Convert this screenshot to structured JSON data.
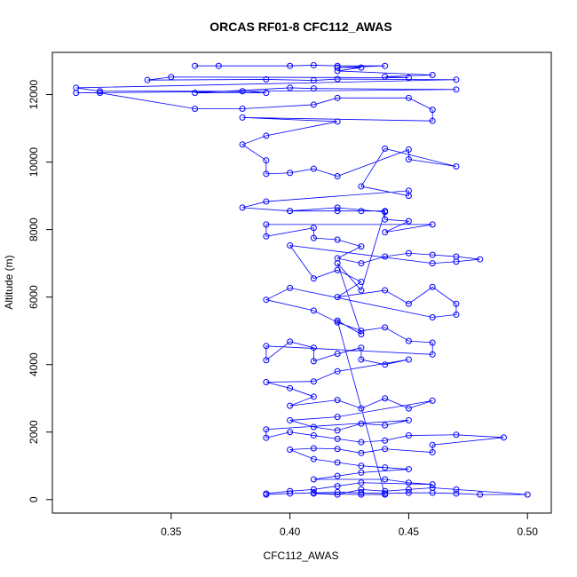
{
  "chart_data": {
    "type": "line",
    "title": "ORCAS RF01-8 CFC112_AWAS",
    "xlabel": "CFC112_AWAS",
    "ylabel": "Altitude (m)",
    "xlim": [
      0.3,
      0.51
    ],
    "ylim": [
      -400,
      13250
    ],
    "x_ticks": [
      0.35,
      0.4,
      0.45,
      0.5
    ],
    "x_tick_labels": [
      "0.35",
      "0.40",
      "0.45",
      "0.50"
    ],
    "y_ticks": [
      0,
      2000,
      4000,
      6000,
      8000,
      10000,
      12000
    ],
    "y_tick_labels": [
      "0",
      "2000",
      "4000",
      "6000",
      "8000",
      "10000",
      "12000"
    ],
    "marker": "open-circle",
    "grid": false,
    "legend": "none",
    "colors": {
      "series": "#0000ff",
      "axes": "#000000",
      "background": "#ffffff"
    },
    "series": [
      {
        "points": [
          [
            0.36,
            12850
          ],
          [
            0.37,
            12850
          ],
          [
            0.4,
            12850
          ],
          [
            0.41,
            12870
          ],
          [
            0.42,
            12850
          ],
          [
            0.44,
            12850
          ],
          [
            0.42,
            12800
          ],
          [
            0.43,
            12800
          ],
          [
            0.42,
            12700
          ],
          [
            0.46,
            12580
          ],
          [
            0.44,
            12530
          ],
          [
            0.45,
            12500
          ],
          [
            0.35,
            12520
          ],
          [
            0.34,
            12430
          ],
          [
            0.39,
            12450
          ],
          [
            0.41,
            12420
          ],
          [
            0.42,
            12460
          ],
          [
            0.47,
            12440
          ],
          [
            0.31,
            12200
          ],
          [
            0.32,
            12100
          ],
          [
            0.38,
            12100
          ],
          [
            0.39,
            12050
          ],
          [
            0.36,
            12050
          ],
          [
            0.4,
            12200
          ],
          [
            0.41,
            12180
          ],
          [
            0.47,
            12150
          ],
          [
            0.31,
            12050
          ],
          [
            0.32,
            12050
          ],
          [
            0.36,
            11580
          ],
          [
            0.38,
            11580
          ],
          [
            0.41,
            11700
          ],
          [
            0.42,
            11900
          ],
          [
            0.45,
            11900
          ],
          [
            0.46,
            11550
          ],
          [
            0.46,
            11220
          ],
          [
            0.38,
            11320
          ],
          [
            0.42,
            11200
          ],
          [
            0.39,
            10780
          ],
          [
            0.38,
            10520
          ],
          [
            0.39,
            10050
          ],
          [
            0.39,
            9650
          ],
          [
            0.4,
            9680
          ],
          [
            0.41,
            9800
          ],
          [
            0.42,
            9580
          ],
          [
            0.45,
            10370
          ],
          [
            0.45,
            10080
          ],
          [
            0.47,
            9870
          ],
          [
            0.44,
            10400
          ],
          [
            0.43,
            9280
          ],
          [
            0.45,
            9000
          ],
          [
            0.45,
            9150
          ],
          [
            0.39,
            8830
          ],
          [
            0.38,
            8650
          ],
          [
            0.4,
            8550
          ],
          [
            0.42,
            8650
          ],
          [
            0.44,
            8520
          ],
          [
            0.44,
            8300
          ],
          [
            0.45,
            8250
          ],
          [
            0.44,
            7920
          ],
          [
            0.46,
            8150
          ],
          [
            0.39,
            8150
          ],
          [
            0.39,
            7800
          ],
          [
            0.41,
            8050
          ],
          [
            0.41,
            7750
          ],
          [
            0.42,
            7700
          ],
          [
            0.43,
            7500
          ],
          [
            0.42,
            7150
          ],
          [
            0.43,
            7000
          ],
          [
            0.44,
            7200
          ],
          [
            0.45,
            7300
          ],
          [
            0.46,
            7250
          ],
          [
            0.47,
            7200
          ],
          [
            0.48,
            7120
          ],
          [
            0.47,
            7050
          ],
          [
            0.46,
            7000
          ],
          [
            0.4,
            7530
          ],
          [
            0.41,
            6550
          ],
          [
            0.42,
            6800
          ],
          [
            0.43,
            6450
          ],
          [
            0.42,
            6000
          ],
          [
            0.44,
            6200
          ],
          [
            0.45,
            5800
          ],
          [
            0.46,
            6300
          ],
          [
            0.47,
            5800
          ],
          [
            0.47,
            5480
          ],
          [
            0.46,
            5400
          ],
          [
            0.4,
            6270
          ],
          [
            0.39,
            5920
          ],
          [
            0.41,
            5600
          ],
          [
            0.42,
            5250
          ],
          [
            0.43,
            5000
          ],
          [
            0.44,
            5100
          ],
          [
            0.45,
            4700
          ],
          [
            0.46,
            4650
          ],
          [
            0.46,
            4300
          ],
          [
            0.39,
            4550
          ],
          [
            0.39,
            4130
          ],
          [
            0.4,
            4680
          ],
          [
            0.41,
            4500
          ],
          [
            0.41,
            4100
          ],
          [
            0.42,
            4320
          ],
          [
            0.43,
            4500
          ],
          [
            0.43,
            4150
          ],
          [
            0.44,
            4000
          ],
          [
            0.45,
            4150
          ],
          [
            0.42,
            3800
          ],
          [
            0.41,
            3500
          ],
          [
            0.39,
            3480
          ],
          [
            0.4,
            3300
          ],
          [
            0.41,
            3050
          ],
          [
            0.4,
            2780
          ],
          [
            0.42,
            2950
          ],
          [
            0.43,
            2700
          ],
          [
            0.44,
            3000
          ],
          [
            0.45,
            2700
          ],
          [
            0.46,
            2930
          ],
          [
            0.42,
            2450
          ],
          [
            0.4,
            2350
          ],
          [
            0.41,
            2150
          ],
          [
            0.42,
            2050
          ],
          [
            0.43,
            2250
          ],
          [
            0.44,
            2200
          ],
          [
            0.45,
            2350
          ],
          [
            0.39,
            2080
          ],
          [
            0.39,
            1830
          ],
          [
            0.4,
            2000
          ],
          [
            0.41,
            1900
          ],
          [
            0.42,
            1800
          ],
          [
            0.43,
            1700
          ],
          [
            0.44,
            1750
          ],
          [
            0.45,
            1900
          ],
          [
            0.47,
            1920
          ],
          [
            0.49,
            1840
          ],
          [
            0.46,
            1620
          ],
          [
            0.46,
            1400
          ],
          [
            0.44,
            1500
          ],
          [
            0.43,
            1380
          ],
          [
            0.42,
            1500
          ],
          [
            0.41,
            1520
          ],
          [
            0.4,
            1480
          ],
          [
            0.41,
            1200
          ],
          [
            0.42,
            1100
          ],
          [
            0.43,
            1000
          ],
          [
            0.44,
            950
          ],
          [
            0.45,
            900
          ],
          [
            0.43,
            800
          ],
          [
            0.42,
            700
          ],
          [
            0.41,
            600
          ],
          [
            0.44,
            600
          ],
          [
            0.45,
            500
          ],
          [
            0.46,
            450
          ],
          [
            0.43,
            500
          ],
          [
            0.42,
            400
          ],
          [
            0.41,
            300
          ],
          [
            0.4,
            250
          ],
          [
            0.39,
            180
          ],
          [
            0.39,
            150
          ],
          [
            0.4,
            180
          ],
          [
            0.41,
            200
          ],
          [
            0.42,
            220
          ],
          [
            0.43,
            200
          ],
          [
            0.44,
            180
          ],
          [
            0.45,
            200
          ],
          [
            0.46,
            200
          ],
          [
            0.47,
            180
          ],
          [
            0.48,
            150
          ],
          [
            0.5,
            150
          ],
          [
            0.47,
            300
          ],
          [
            0.46,
            350
          ],
          [
            0.45,
            300
          ],
          [
            0.44,
            250
          ],
          [
            0.43,
            300
          ],
          [
            0.42,
            150
          ],
          [
            0.41,
            180
          ],
          [
            0.43,
            150
          ],
          [
            0.44,
            150
          ],
          [
            0.42,
            5300
          ],
          [
            0.43,
            4900
          ],
          [
            0.42,
            7000
          ],
          [
            0.43,
            6200
          ],
          [
            0.44,
            8550
          ],
          [
            0.43,
            8550
          ],
          [
            0.42,
            8550
          ],
          [
            0.4,
            8550
          ]
        ]
      }
    ]
  }
}
